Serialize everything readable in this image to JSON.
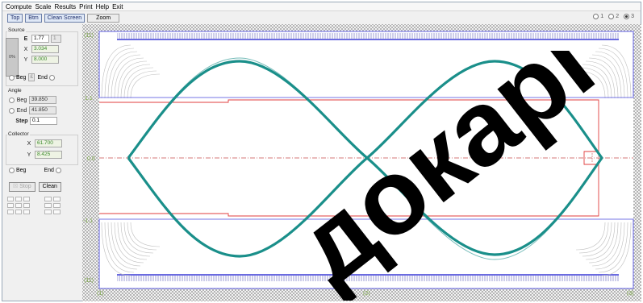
{
  "menu": [
    "Compute",
    "Scale",
    "Results",
    "Print",
    "Help",
    "Exit"
  ],
  "toolbar": {
    "top_label": "Top",
    "btm_label": "Btm",
    "clean_screen_label": "Clean Screen",
    "zoom_label": "Zoom"
  },
  "view_options": {
    "opt1": "1",
    "opt2": "2",
    "opt3": "3",
    "selected": "3"
  },
  "source": {
    "group_label": "Source",
    "box_text": "0%",
    "e_label": "E",
    "e_value": "1.77",
    "e_unit": "1",
    "x_label": "X",
    "x_value": "3.034",
    "y_label": "Y",
    "y_value": "8.000",
    "beg_label": "Beg",
    "end_label": "End",
    "end_marker": "£"
  },
  "angle": {
    "group_label": "Angle",
    "beg_label": "Beg",
    "beg_value": "39.850",
    "end_label": "End",
    "end_value": "41.850",
    "step_label": "Step",
    "step_value": "0.1"
  },
  "collector": {
    "group_label": "Collector",
    "x_label": "X",
    "x_value": "61.700",
    "y_label": "Y",
    "y_value": "8.425",
    "beg_label": "Beg",
    "end_label": "End"
  },
  "controls": {
    "stop_label": "Stop",
    "clean_label": "Clean"
  },
  "plot": {
    "tick_left_top": "(11)",
    "tick_left_mid": "1.1",
    "tick_center": "0.0",
    "tick_left_low": "-1.1",
    "tick_left_bottom": "(11)",
    "tick_bottom_left": "(1)",
    "tick_bottom_mid": "(2)",
    "tick_bottom_right": "(3)",
    "colors": {
      "beam": "#1a8f8a",
      "frame": "#5d5de0",
      "electrode": "#e03d3d",
      "hatch": "#9a9a9a"
    }
  },
  "watermark": "докарг"
}
